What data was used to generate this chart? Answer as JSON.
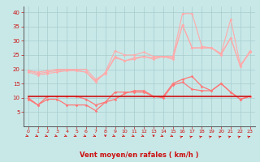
{
  "x": [
    0,
    1,
    2,
    3,
    4,
    5,
    6,
    7,
    8,
    9,
    10,
    11,
    12,
    13,
    14,
    15,
    16,
    17,
    18,
    19,
    20,
    21,
    22,
    23
  ],
  "line1": [
    19.5,
    18.5,
    19.0,
    19.5,
    19.5,
    19.5,
    19.0,
    16.0,
    18.5,
    24.5,
    23.0,
    24.0,
    24.5,
    24.0,
    24.5,
    24.0,
    35.5,
    27.5,
    27.5,
    27.5,
    25.0,
    31.0,
    21.0,
    26.0
  ],
  "line2": [
    19.0,
    18.0,
    18.5,
    19.0,
    19.5,
    19.5,
    19.0,
    15.5,
    19.0,
    26.5,
    25.0,
    25.0,
    26.0,
    24.5,
    24.5,
    24.5,
    39.5,
    39.5,
    28.0,
    27.5,
    25.5,
    31.0,
    21.0,
    26.5
  ],
  "line3": [
    19.5,
    19.0,
    19.5,
    20.0,
    20.0,
    20.0,
    20.0,
    16.5,
    18.5,
    24.0,
    23.0,
    23.5,
    24.5,
    23.5,
    24.5,
    23.5,
    35.5,
    27.5,
    27.5,
    27.5,
    25.5,
    37.5,
    21.5,
    26.0
  ],
  "line4": [
    9.5,
    7.5,
    10.5,
    10.5,
    10.5,
    10.5,
    9.5,
    7.5,
    8.5,
    12.0,
    12.0,
    12.0,
    12.0,
    10.5,
    10.5,
    15.0,
    16.5,
    17.5,
    14.0,
    12.5,
    15.0,
    12.0,
    9.5,
    10.5
  ],
  "line5": [
    10.5,
    10.5,
    10.5,
    10.5,
    10.5,
    10.5,
    10.5,
    10.5,
    10.5,
    10.5,
    10.5,
    10.5,
    10.5,
    10.5,
    10.5,
    10.5,
    10.5,
    10.5,
    10.5,
    10.5,
    10.5,
    10.5,
    10.5,
    10.5
  ],
  "line6": [
    10.0,
    7.5,
    9.5,
    9.5,
    7.5,
    7.5,
    7.5,
    5.5,
    8.5,
    9.5,
    11.5,
    12.5,
    12.5,
    10.5,
    10.0,
    14.5,
    15.5,
    13.0,
    12.5,
    12.5,
    15.0,
    12.0,
    9.5,
    10.5
  ],
  "bg_color": "#c8e8e8",
  "grid_color": "#a8cccc",
  "line_color_light": "#ffaaaa",
  "line_color_mid": "#ff7777",
  "line_color_dark": "#cc1111",
  "xlabel": "Vent moyen/en rafales ( km/h )",
  "xlabel_color": "#cc1111",
  "tick_color": "#cc1111",
  "ylim": [
    0,
    42
  ],
  "xlim": [
    -0.5,
    23.5
  ],
  "yticks": [
    5,
    10,
    15,
    20,
    25,
    30,
    35,
    40
  ],
  "xticks": [
    0,
    1,
    2,
    3,
    4,
    5,
    6,
    7,
    8,
    9,
    10,
    11,
    12,
    13,
    14,
    15,
    16,
    17,
    18,
    19,
    20,
    21,
    22,
    23
  ],
  "arrow_angles": [
    45,
    45,
    45,
    45,
    45,
    45,
    45,
    45,
    0,
    45,
    45,
    45,
    45,
    0,
    45,
    45,
    135,
    135,
    135,
    135,
    135,
    135,
    135,
    135
  ]
}
